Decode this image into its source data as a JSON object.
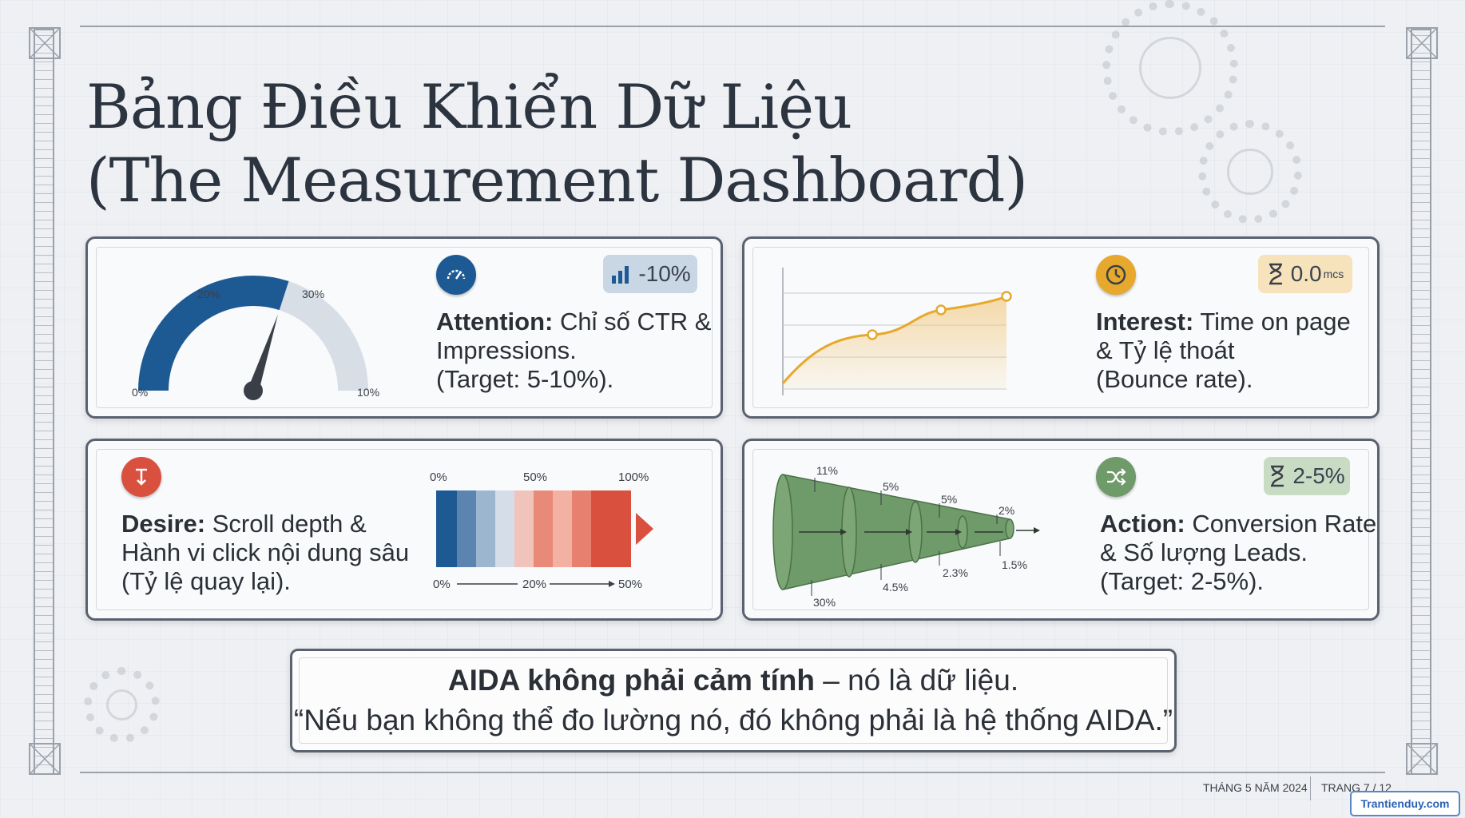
{
  "title": {
    "line1": "Bảng Điều Khiển Dữ Liệu",
    "line2": "(The Measurement Dashboard)"
  },
  "attention": {
    "gauge_labels": [
      "0%",
      "20%",
      "30%",
      "10%"
    ],
    "badge": "-10%",
    "label_bold": "Attention:",
    "label_rest": " Chỉ số CTR &",
    "line2": "Impressions.",
    "line3": "(Target: 5-10%).",
    "icon": "speedometer-icon",
    "badge_icon": "bar-chart-icon",
    "gauge_needle_fraction": 0.6
  },
  "interest": {
    "badge": "0.0",
    "badge_unit": "mcs",
    "label_bold": "Interest:",
    "label_rest": " Time on page",
    "line2": "& Tỷ lệ thoát",
    "line3": "(Bounce rate).",
    "icon": "clock-icon",
    "badge_icon": "hourglass-icon"
  },
  "desire": {
    "scale_top": [
      "0%",
      "50%",
      "100%"
    ],
    "scale_bottom": [
      "0%",
      "20%",
      "50%"
    ],
    "label_bold": "Desire:",
    "label_rest": " Scroll depth &",
    "line2": "Hành vi click nội dung sâu",
    "line3": "(Tỷ lệ quay lại).",
    "icon": "scroll-down-icon"
  },
  "action": {
    "funnel_top": [
      "11%",
      "5%",
      "5%",
      "2%"
    ],
    "funnel_bottom": [
      "30%",
      "4.5%",
      "2.3%",
      "1.5%"
    ],
    "badge": "2-5%",
    "label_bold": "Action:",
    "label_rest": " Conversion Rate",
    "line2": "& Số lượng Leads.",
    "line3": "(Target: 2-5%).",
    "icon": "shuffle-icon",
    "badge_icon": "hourglass-icon"
  },
  "quote": {
    "bold": "AIDA không phải cảm tính",
    "rest": " – nó là dữ liệu.",
    "line2": "“Nếu bạn không thể đo lường nó, đó không phải là hệ thống AIDA.”"
  },
  "footer": {
    "date": "THÁNG 5 NĂM 2024",
    "page": "TRANG 7 / 12"
  },
  "watermark": "Trantienduy.com",
  "colors": {
    "attention_blue": "#1d5a94",
    "interest_gold": "#e6a92e",
    "desire_red": "#d9503f",
    "action_green": "#6f9a6a"
  }
}
